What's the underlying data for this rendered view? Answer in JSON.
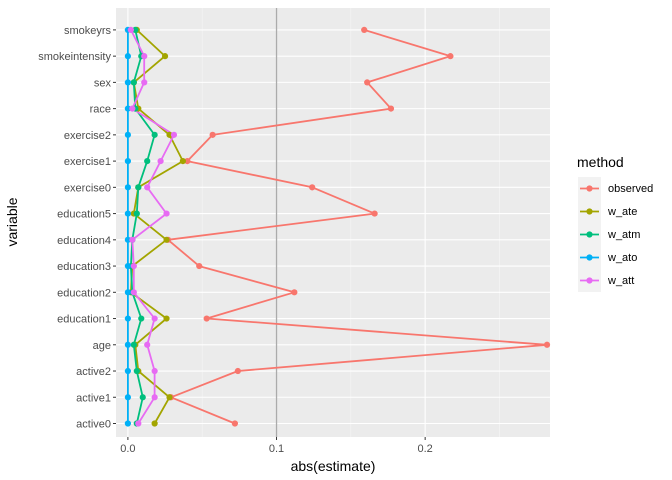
{
  "chart_data": {
    "type": "line",
    "title": "",
    "xlabel": "abs(estimate)",
    "ylabel": "variable",
    "xlim": [
      -0.008,
      0.284
    ],
    "x_ticks": [
      {
        "value": 0.0,
        "label": "0.0"
      },
      {
        "value": 0.1,
        "label": "0.1"
      },
      {
        "value": 0.2,
        "label": "0.2"
      }
    ],
    "reference_line": 0.1,
    "grid": true,
    "legend": {
      "title": "method",
      "position": "right"
    },
    "categories": [
      "active0",
      "active1",
      "active2",
      "age",
      "education1",
      "education2",
      "education3",
      "education4",
      "education5",
      "exercise0",
      "exercise1",
      "exercise2",
      "race",
      "sex",
      "smokeintensity",
      "smokeyrs"
    ],
    "series": [
      {
        "name": "observed",
        "color": "#F8766D",
        "values": [
          0.072,
          0.029,
          0.074,
          0.282,
          0.053,
          0.112,
          0.048,
          0.027,
          0.166,
          0.124,
          0.04,
          0.057,
          0.177,
          0.161,
          0.217,
          0.159
        ]
      },
      {
        "name": "w_ate",
        "color": "#A3A500",
        "values": [
          0.018,
          0.028,
          0.007,
          0.005,
          0.026,
          0.002,
          0.003,
          0.026,
          0.004,
          0.007,
          0.037,
          0.028,
          0.007,
          0.004,
          0.025,
          0.006
        ]
      },
      {
        "name": "w_atm",
        "color": "#00BF7D",
        "values": [
          0.006,
          0.01,
          0.006,
          0.004,
          0.009,
          0.003,
          0.002,
          0.003,
          0.006,
          0.007,
          0.013,
          0.018,
          0.005,
          0.004,
          0.009,
          0.005
        ]
      },
      {
        "name": "w_ato",
        "color": "#00B0F6",
        "values": [
          0.0,
          0.0,
          0.0,
          0.0,
          0.0,
          0.0,
          0.0,
          0.0,
          0.0,
          0.0,
          0.0,
          0.0,
          0.0,
          0.0,
          0.0,
          0.0
        ]
      },
      {
        "name": "w_att",
        "color": "#E76BF3",
        "values": [
          0.007,
          0.018,
          0.018,
          0.013,
          0.018,
          0.004,
          0.004,
          0.003,
          0.026,
          0.013,
          0.022,
          0.031,
          0.003,
          0.011,
          0.011,
          0.002
        ]
      }
    ]
  }
}
